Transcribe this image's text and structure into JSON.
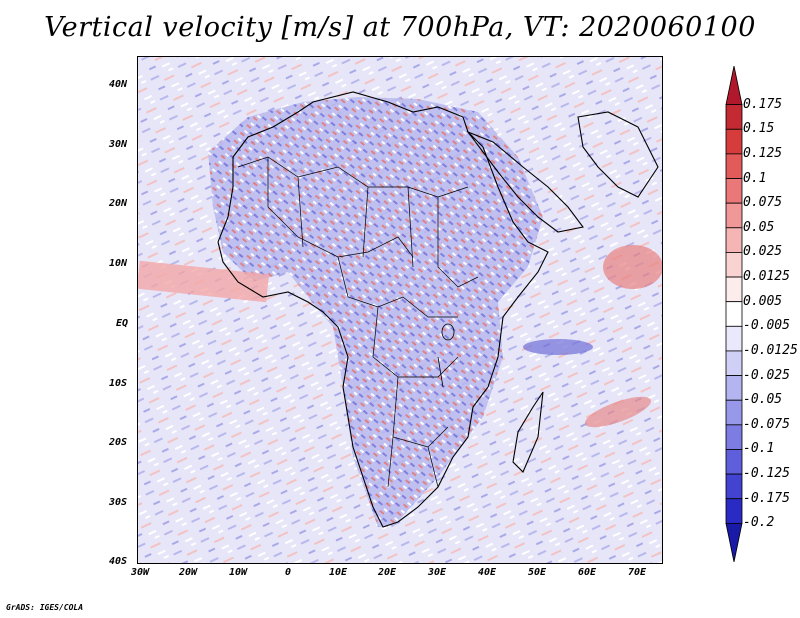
{
  "title": "Vertical velocity [m/s] at 700hPa, VT: 2020060100",
  "credit": "GrADS: IGES/COLA",
  "lat_labels": [
    "40N",
    "30N",
    "20N",
    "10N",
    "EQ",
    "10S",
    "20S",
    "30S",
    "40S"
  ],
  "lon_labels": [
    "30W",
    "20W",
    "10W",
    "0",
    "10E",
    "20E",
    "30E",
    "40E",
    "50E",
    "60E",
    "70E"
  ],
  "colorbar": {
    "labels": [
      "0.175",
      "0.15",
      "0.125",
      "0.1",
      "0.075",
      "0.05",
      "0.025",
      "0.0125",
      "0.005",
      "-0.005",
      "-0.0125",
      "-0.025",
      "-0.05",
      "-0.075",
      "-0.1",
      "-0.125",
      "-0.175",
      "-0.2"
    ],
    "colors": [
      "#b2182b",
      "#c42a32",
      "#d73c3c",
      "#e25a5a",
      "#ea7878",
      "#f09797",
      "#f5b5b5",
      "#f9d2d2",
      "#fcecec",
      "#ffffff",
      "#e9e9fb",
      "#d0d0f6",
      "#b4b4f0",
      "#9898ea",
      "#7c7ce3",
      "#5f5fdb",
      "#4343d2",
      "#2a2ac4",
      "#1a1aa8"
    ]
  }
}
